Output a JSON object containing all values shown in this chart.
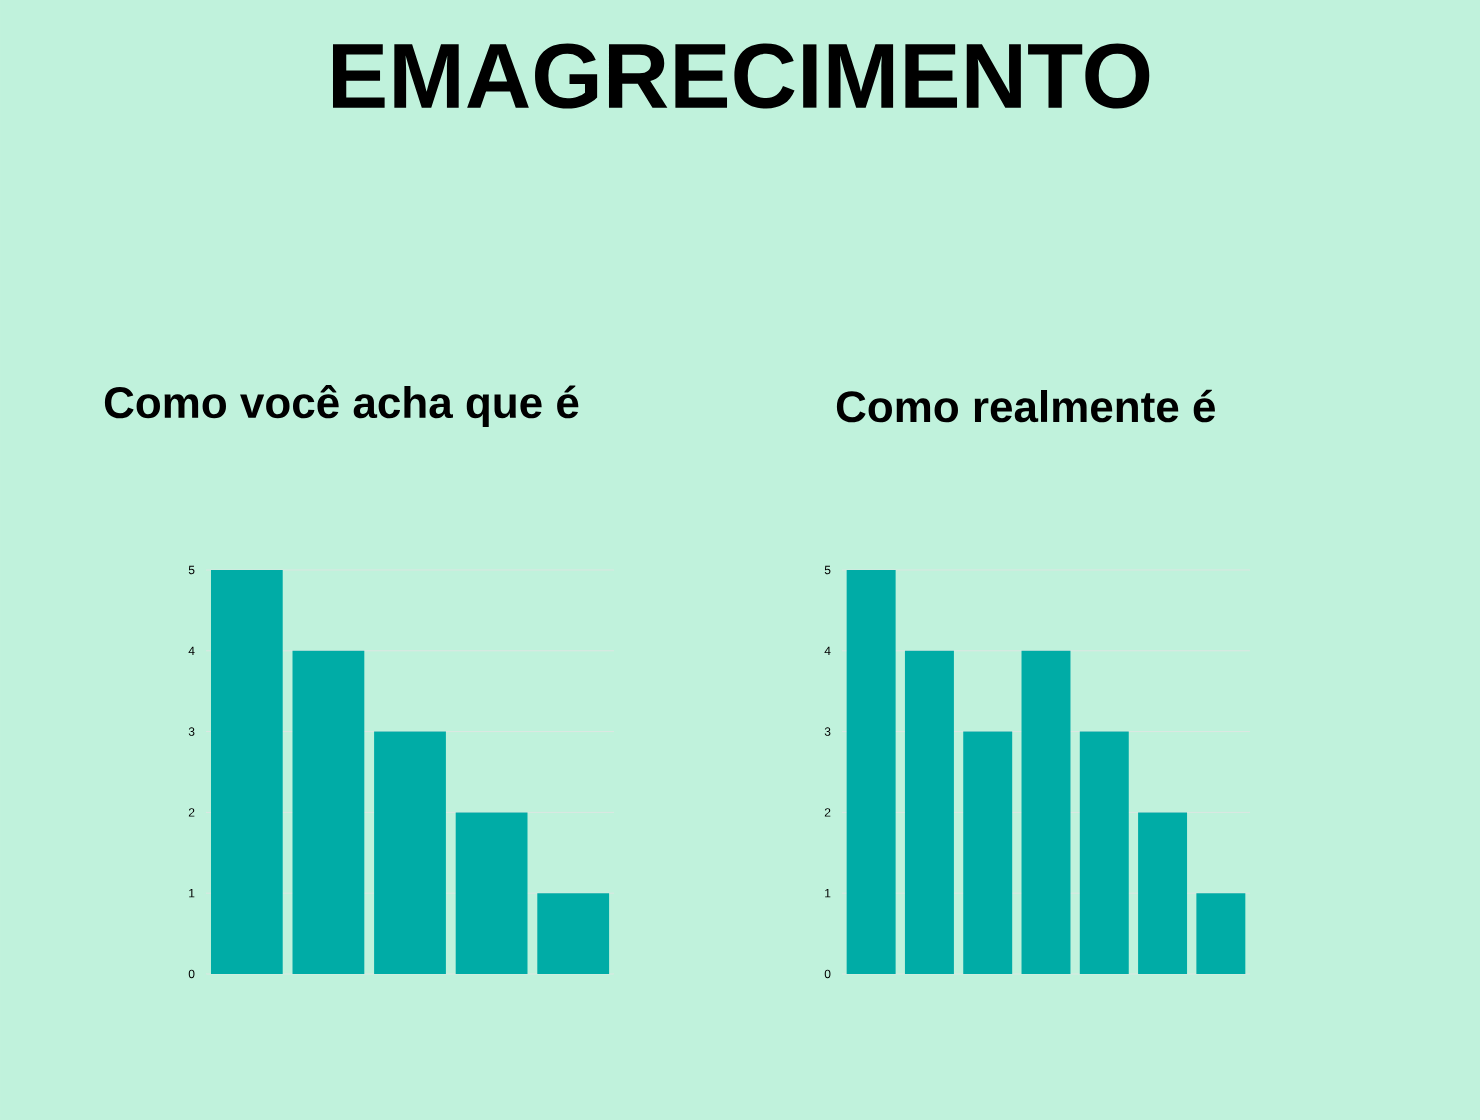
{
  "chart_data": [
    {
      "type": "bar",
      "title": "EMAGRECIMENTO",
      "subtitle": "Como você acha que é",
      "categories": [
        null,
        null,
        null,
        null,
        null
      ],
      "values": [
        5,
        4,
        3,
        2,
        1
      ],
      "color": "#00aca6",
      "ylim": [
        0,
        5
      ],
      "yticks": [
        0,
        1,
        2,
        3,
        4,
        5
      ],
      "grid": "y",
      "tick_labels": "y"
    },
    {
      "type": "bar",
      "title": "Como realmente é",
      "categories": [
        null,
        null,
        null,
        null,
        null,
        null,
        null
      ],
      "values": [
        5,
        4,
        3,
        4,
        3,
        2,
        1
      ],
      "color": "#00aca6",
      "ylim": [
        0,
        5
      ],
      "yticks": [
        0,
        1,
        2,
        3,
        4,
        5
      ],
      "grid": "y",
      "tick_labels": "y"
    }
  ]
}
